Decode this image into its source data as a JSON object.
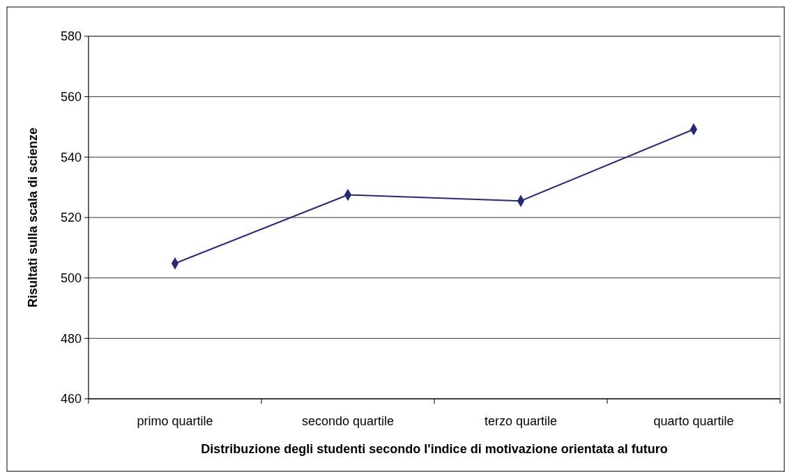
{
  "chart_data": {
    "type": "line",
    "xlabel": "Distribuzione degli studenti secondo l'indice di motivazione orientata al futuro",
    "ylabel": "Risultati sulla scala di scienze",
    "categories": [
      "primo quartile",
      "secondo quartile",
      "terzo quartile",
      "quarto quartile"
    ],
    "series": [
      {
        "color": "#28287a",
        "values": [
          504.8,
          527.5,
          525.5,
          549.2
        ]
      }
    ],
    "ylim": [
      460,
      580
    ],
    "yticks": [
      460,
      480,
      500,
      520,
      540,
      560,
      580
    ],
    "grid": "y",
    "marker": "diamond",
    "line_style": "solid"
  }
}
